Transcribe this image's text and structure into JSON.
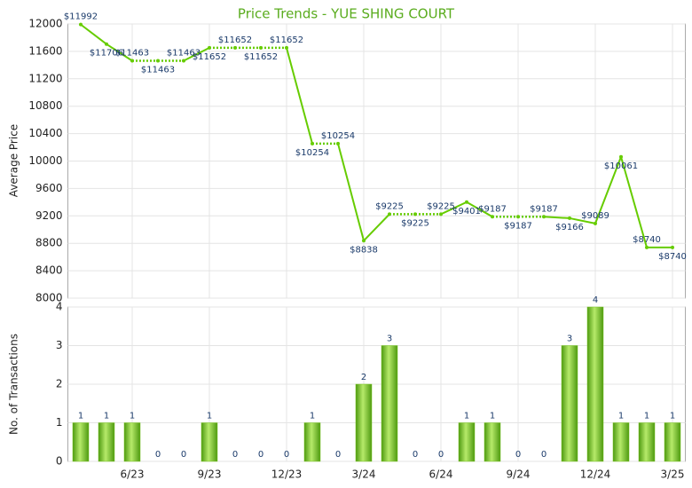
{
  "chart_data": [
    {
      "type": "line",
      "title": "Price Trends - YUE SHING COURT",
      "y_label": "Average Price",
      "color": "#66cc00",
      "values": [
        11992,
        11706,
        11463,
        11463,
        11463,
        11652,
        11652,
        11652,
        11652,
        10254,
        10254,
        8838,
        9225,
        9225,
        9225,
        9401,
        9187,
        9187,
        9187,
        9166,
        9089,
        10061,
        8740,
        8740
      ],
      "value_labels": [
        "$11992",
        "$11706",
        "$11463",
        "$11463",
        "$11463",
        "$11652",
        "$11652",
        "$11652",
        "$11652",
        "$10254",
        "$10254",
        "$8838",
        "$9225",
        "$9225",
        "$9225",
        "$9401",
        "$9187",
        "$9187",
        "$9187",
        "$9166",
        "$9089",
        "$10061",
        "$8740",
        "$8740"
      ],
      "ylim": [
        8000,
        12000
      ],
      "yticks": [
        8000,
        8400,
        8800,
        9200,
        9600,
        10000,
        10400,
        10800,
        11200,
        11600,
        12000
      ],
      "grid": true
    },
    {
      "type": "bar",
      "y_label": "No. of Transactions",
      "color": "#77c21e",
      "categories": [
        null,
        null,
        "6/23",
        null,
        null,
        "9/23",
        null,
        null,
        "12/23",
        null,
        null,
        "3/24",
        null,
        null,
        "6/24",
        null,
        null,
        "9/24",
        null,
        null,
        "12/24",
        null,
        null,
        "3/25"
      ],
      "values": [
        1,
        1,
        1,
        0,
        0,
        1,
        0,
        0,
        0,
        1,
        0,
        2,
        3,
        0,
        0,
        1,
        1,
        0,
        0,
        3,
        4,
        1,
        1,
        1
      ],
      "ylim": [
        0,
        4
      ],
      "yticks": [
        0,
        1,
        2,
        3,
        4
      ],
      "grid": true
    }
  ]
}
